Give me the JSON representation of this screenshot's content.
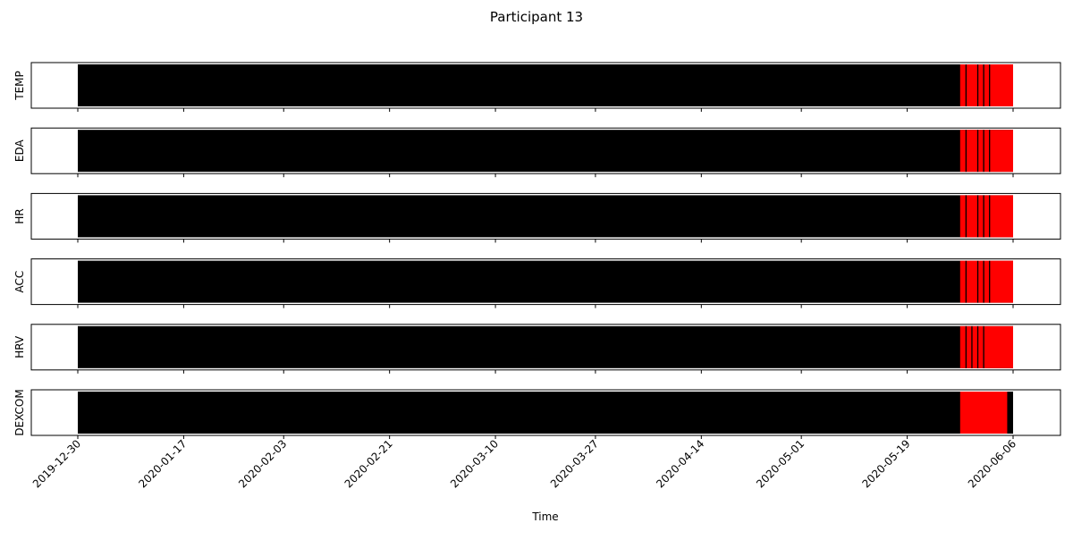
{
  "chart_data": {
    "type": "event-raster",
    "suptitle": "Participant 13",
    "xlabel": "Time",
    "x_domain": [
      "2019-12-30",
      "2020-06-06"
    ],
    "x_ticks": [
      "2019-12-30",
      "2020-01-17",
      "2020-02-03",
      "2020-02-21",
      "2020-03-10",
      "2020-03-27",
      "2020-04-14",
      "2020-05-01",
      "2020-05-19",
      "2020-06-06"
    ],
    "colors": {
      "background_data": "#000000",
      "highlight": "#ff0000"
    },
    "panels": [
      {
        "label": "TEMP",
        "data_range": [
          "2019-12-30",
          "2020-06-06"
        ],
        "highlight_range": [
          "2020-05-28",
          "2020-06-06"
        ],
        "black_events": [
          "2020-05-29",
          "2020-05-31",
          "2020-06-01",
          "2020-06-02"
        ]
      },
      {
        "label": "EDA",
        "data_range": [
          "2019-12-30",
          "2020-06-06"
        ],
        "highlight_range": [
          "2020-05-28",
          "2020-06-06"
        ],
        "black_events": [
          "2020-05-29",
          "2020-05-31",
          "2020-06-01",
          "2020-06-02"
        ]
      },
      {
        "label": "HR",
        "data_range": [
          "2019-12-30",
          "2020-06-06"
        ],
        "highlight_range": [
          "2020-05-28",
          "2020-06-06"
        ],
        "black_events": [
          "2020-05-29",
          "2020-05-31",
          "2020-06-01",
          "2020-06-02"
        ]
      },
      {
        "label": "ACC",
        "data_range": [
          "2019-12-30",
          "2020-06-06"
        ],
        "highlight_range": [
          "2020-05-28",
          "2020-06-06"
        ],
        "black_events": [
          "2020-05-29",
          "2020-05-31",
          "2020-06-01",
          "2020-06-02"
        ]
      },
      {
        "label": "HRV",
        "data_range": [
          "2019-12-30",
          "2020-06-06"
        ],
        "highlight_range": [
          "2020-05-28",
          "2020-06-06"
        ],
        "black_events": [
          "2020-05-29",
          "2020-05-30",
          "2020-05-31",
          "2020-06-01"
        ]
      },
      {
        "label": "DEXCOM",
        "data_range": [
          "2019-12-30",
          "2020-06-06"
        ],
        "highlight_range": [
          "2020-05-28",
          "2020-06-05"
        ],
        "black_events": []
      }
    ]
  }
}
